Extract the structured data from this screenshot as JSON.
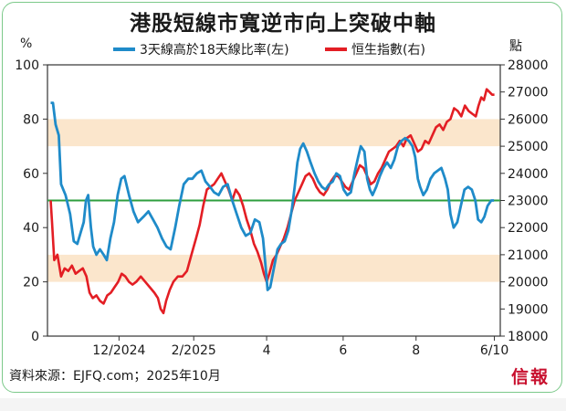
{
  "title": "港股短線市寬逆市向上突破中軸",
  "source": "資料來源：EJFQ.com；2025年10月",
  "logo": "信報",
  "colors": {
    "breadth": "#1f8bc9",
    "hsi": "#e31e24",
    "midline": "#2e9e3e",
    "band": "#fbe6cc"
  },
  "chart_data": {
    "type": "line",
    "left_unit": "%",
    "right_unit": "點",
    "left_axis": {
      "min": 0,
      "max": 100,
      "ticks": [
        0,
        20,
        40,
        60,
        80,
        100
      ]
    },
    "right_axis": {
      "min": 18000,
      "max": 28000,
      "ticks": [
        18000,
        19000,
        20000,
        21000,
        22000,
        23000,
        24000,
        25000,
        26000,
        27000,
        28000
      ]
    },
    "x_ticks": [
      {
        "label": "12/2024",
        "t": 0.158
      },
      {
        "label": "2/2025",
        "t": 0.323
      },
      {
        "label": "4",
        "t": 0.484
      },
      {
        "label": "6",
        "t": 0.653
      },
      {
        "label": "8",
        "t": 0.814
      },
      {
        "label": "6/10",
        "t": 0.987
      }
    ],
    "bands": [
      {
        "from": 70,
        "to": 80
      },
      {
        "from": 20,
        "to": 30
      }
    ],
    "midline": 50,
    "series": [
      {
        "name": "3天線高於18天線比率(左)",
        "axis": "left",
        "points": [
          [
            0.007,
            86
          ],
          [
            0.012,
            86
          ],
          [
            0.018,
            78
          ],
          [
            0.025,
            74
          ],
          [
            0.03,
            56
          ],
          [
            0.04,
            52
          ],
          [
            0.05,
            45
          ],
          [
            0.058,
            35
          ],
          [
            0.066,
            34
          ],
          [
            0.073,
            38
          ],
          [
            0.08,
            42
          ],
          [
            0.085,
            50
          ],
          [
            0.09,
            52
          ],
          [
            0.096,
            40
          ],
          [
            0.101,
            33
          ],
          [
            0.108,
            30
          ],
          [
            0.116,
            32
          ],
          [
            0.124,
            30
          ],
          [
            0.131,
            28
          ],
          [
            0.139,
            36
          ],
          [
            0.147,
            42
          ],
          [
            0.155,
            52
          ],
          [
            0.163,
            58
          ],
          [
            0.17,
            59
          ],
          [
            0.18,
            52
          ],
          [
            0.19,
            46
          ],
          [
            0.2,
            42
          ],
          [
            0.212,
            44
          ],
          [
            0.223,
            46
          ],
          [
            0.233,
            43
          ],
          [
            0.243,
            40
          ],
          [
            0.253,
            36
          ],
          [
            0.263,
            33
          ],
          [
            0.272,
            32
          ],
          [
            0.282,
            40
          ],
          [
            0.291,
            48
          ],
          [
            0.301,
            56
          ],
          [
            0.311,
            58
          ],
          [
            0.32,
            58
          ],
          [
            0.33,
            60
          ],
          [
            0.34,
            61
          ],
          [
            0.349,
            57
          ],
          [
            0.359,
            55
          ],
          [
            0.368,
            53
          ],
          [
            0.378,
            52
          ],
          [
            0.388,
            55
          ],
          [
            0.398,
            56
          ],
          [
            0.408,
            50
          ],
          [
            0.418,
            45
          ],
          [
            0.428,
            40
          ],
          [
            0.438,
            37
          ],
          [
            0.448,
            38
          ],
          [
            0.458,
            43
          ],
          [
            0.468,
            42
          ],
          [
            0.476,
            36
          ],
          [
            0.482,
            25
          ],
          [
            0.486,
            17
          ],
          [
            0.492,
            18
          ],
          [
            0.5,
            25
          ],
          [
            0.508,
            32
          ],
          [
            0.516,
            34
          ],
          [
            0.524,
            35
          ],
          [
            0.532,
            39
          ],
          [
            0.54,
            47
          ],
          [
            0.546,
            55
          ],
          [
            0.552,
            64
          ],
          [
            0.558,
            69
          ],
          [
            0.565,
            71
          ],
          [
            0.573,
            68
          ],
          [
            0.581,
            64
          ],
          [
            0.59,
            60
          ],
          [
            0.598,
            57
          ],
          [
            0.606,
            55
          ],
          [
            0.614,
            54
          ],
          [
            0.622,
            56
          ],
          [
            0.63,
            57
          ],
          [
            0.638,
            60
          ],
          [
            0.646,
            59
          ],
          [
            0.654,
            54
          ],
          [
            0.662,
            52
          ],
          [
            0.67,
            53
          ],
          [
            0.678,
            60
          ],
          [
            0.686,
            66
          ],
          [
            0.692,
            70
          ],
          [
            0.7,
            68
          ],
          [
            0.706,
            58
          ],
          [
            0.712,
            54
          ],
          [
            0.718,
            52
          ],
          [
            0.726,
            55
          ],
          [
            0.734,
            59
          ],
          [
            0.742,
            62
          ],
          [
            0.75,
            64
          ],
          [
            0.758,
            62
          ],
          [
            0.766,
            65
          ],
          [
            0.774,
            70
          ],
          [
            0.782,
            72
          ],
          [
            0.79,
            73
          ],
          [
            0.798,
            72
          ],
          [
            0.806,
            70
          ],
          [
            0.812,
            66
          ],
          [
            0.818,
            58
          ],
          [
            0.823,
            55
          ],
          [
            0.83,
            52
          ],
          [
            0.838,
            54
          ],
          [
            0.846,
            58
          ],
          [
            0.854,
            60
          ],
          [
            0.862,
            61
          ],
          [
            0.87,
            62
          ],
          [
            0.878,
            58
          ],
          [
            0.884,
            54
          ],
          [
            0.89,
            45
          ],
          [
            0.897,
            40
          ],
          [
            0.905,
            42
          ],
          [
            0.913,
            48
          ],
          [
            0.921,
            54
          ],
          [
            0.929,
            55
          ],
          [
            0.937,
            54
          ],
          [
            0.945,
            50
          ],
          [
            0.951,
            43
          ],
          [
            0.958,
            42
          ],
          [
            0.965,
            44
          ],
          [
            0.972,
            48
          ],
          [
            0.98,
            50
          ],
          [
            0.986,
            50
          ]
        ]
      },
      {
        "name": "恒生指數(右)",
        "axis": "right",
        "points": [
          [
            0.007,
            23000
          ],
          [
            0.01,
            22200
          ],
          [
            0.015,
            20800
          ],
          [
            0.022,
            21000
          ],
          [
            0.03,
            20200
          ],
          [
            0.038,
            20500
          ],
          [
            0.046,
            20400
          ],
          [
            0.054,
            20600
          ],
          [
            0.062,
            20300
          ],
          [
            0.07,
            20400
          ],
          [
            0.078,
            20500
          ],
          [
            0.086,
            20200
          ],
          [
            0.093,
            19600
          ],
          [
            0.1,
            19400
          ],
          [
            0.108,
            19500
          ],
          [
            0.116,
            19300
          ],
          [
            0.124,
            19200
          ],
          [
            0.132,
            19500
          ],
          [
            0.14,
            19600
          ],
          [
            0.148,
            19800
          ],
          [
            0.156,
            20000
          ],
          [
            0.164,
            20300
          ],
          [
            0.172,
            20200
          ],
          [
            0.18,
            20000
          ],
          [
            0.188,
            19900
          ],
          [
            0.196,
            20000
          ],
          [
            0.206,
            20200
          ],
          [
            0.216,
            20000
          ],
          [
            0.226,
            19800
          ],
          [
            0.236,
            19600
          ],
          [
            0.244,
            19400
          ],
          [
            0.25,
            19000
          ],
          [
            0.256,
            18850
          ],
          [
            0.262,
            19300
          ],
          [
            0.27,
            19700
          ],
          [
            0.278,
            20000
          ],
          [
            0.288,
            20200
          ],
          [
            0.298,
            20200
          ],
          [
            0.308,
            20400
          ],
          [
            0.318,
            21000
          ],
          [
            0.328,
            21600
          ],
          [
            0.336,
            22100
          ],
          [
            0.344,
            22800
          ],
          [
            0.352,
            23400
          ],
          [
            0.36,
            23500
          ],
          [
            0.368,
            23600
          ],
          [
            0.376,
            23800
          ],
          [
            0.384,
            24000
          ],
          [
            0.392,
            23700
          ],
          [
            0.4,
            23400
          ],
          [
            0.408,
            23000
          ],
          [
            0.416,
            23400
          ],
          [
            0.424,
            23200
          ],
          [
            0.432,
            22800
          ],
          [
            0.44,
            22300
          ],
          [
            0.448,
            21900
          ],
          [
            0.456,
            21400
          ],
          [
            0.464,
            21100
          ],
          [
            0.472,
            20700
          ],
          [
            0.478,
            20300
          ],
          [
            0.484,
            20000
          ],
          [
            0.49,
            20300
          ],
          [
            0.498,
            20800
          ],
          [
            0.506,
            21000
          ],
          [
            0.514,
            21300
          ],
          [
            0.522,
            21600
          ],
          [
            0.53,
            22000
          ],
          [
            0.538,
            22500
          ],
          [
            0.546,
            23000
          ],
          [
            0.554,
            23300
          ],
          [
            0.562,
            23600
          ],
          [
            0.57,
            23900
          ],
          [
            0.578,
            24000
          ],
          [
            0.586,
            23800
          ],
          [
            0.594,
            23500
          ],
          [
            0.602,
            23300
          ],
          [
            0.61,
            23200
          ],
          [
            0.618,
            23400
          ],
          [
            0.626,
            23700
          ],
          [
            0.634,
            23900
          ],
          [
            0.642,
            23900
          ],
          [
            0.65,
            23700
          ],
          [
            0.658,
            23500
          ],
          [
            0.666,
            23400
          ],
          [
            0.674,
            23700
          ],
          [
            0.682,
            24000
          ],
          [
            0.69,
            24300
          ],
          [
            0.698,
            24200
          ],
          [
            0.706,
            23900
          ],
          [
            0.714,
            23600
          ],
          [
            0.722,
            23700
          ],
          [
            0.73,
            24000
          ],
          [
            0.738,
            24200
          ],
          [
            0.746,
            24500
          ],
          [
            0.754,
            24800
          ],
          [
            0.762,
            24900
          ],
          [
            0.77,
            25000
          ],
          [
            0.778,
            25200
          ],
          [
            0.786,
            25000
          ],
          [
            0.794,
            25300
          ],
          [
            0.802,
            25400
          ],
          [
            0.81,
            25100
          ],
          [
            0.818,
            24800
          ],
          [
            0.826,
            24900
          ],
          [
            0.834,
            25200
          ],
          [
            0.842,
            25100
          ],
          [
            0.85,
            25400
          ],
          [
            0.858,
            25700
          ],
          [
            0.866,
            25800
          ],
          [
            0.874,
            25600
          ],
          [
            0.882,
            25900
          ],
          [
            0.89,
            26000
          ],
          [
            0.898,
            26400
          ],
          [
            0.906,
            26300
          ],
          [
            0.914,
            26100
          ],
          [
            0.922,
            26500
          ],
          [
            0.93,
            26300
          ],
          [
            0.938,
            26200
          ],
          [
            0.946,
            26100
          ],
          [
            0.952,
            26500
          ],
          [
            0.958,
            26800
          ],
          [
            0.964,
            26700
          ],
          [
            0.97,
            27100
          ],
          [
            0.976,
            27000
          ],
          [
            0.982,
            26900
          ],
          [
            0.987,
            26900
          ]
        ]
      }
    ]
  }
}
